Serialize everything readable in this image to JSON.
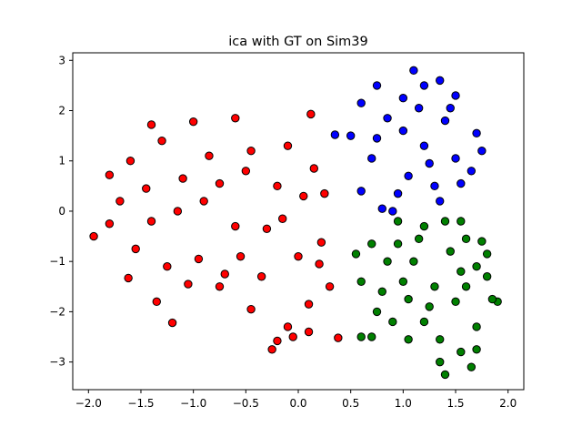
{
  "chart_data": {
    "type": "scatter",
    "title": "ica with GT on Sim39",
    "xlabel": "",
    "ylabel": "",
    "xlim": [
      -2.15,
      2.15
    ],
    "ylim": [
      -3.55,
      3.15
    ],
    "xticks": [
      -2.0,
      -1.5,
      -1.0,
      -0.5,
      0.0,
      0.5,
      1.0,
      1.5,
      2.0
    ],
    "xtick_labels": [
      "−2.0",
      "−1.5",
      "−1.0",
      "−0.5",
      "0.0",
      "0.5",
      "1.0",
      "1.5",
      "2.0"
    ],
    "yticks": [
      -3,
      -2,
      -1,
      0,
      1,
      2,
      3
    ],
    "ytick_labels": [
      "−3",
      "−2",
      "−1",
      "0",
      "1",
      "2",
      "3"
    ],
    "grid": false,
    "legend": "none",
    "marker_edge_color": "#000000",
    "series": [
      {
        "color": "#ff0000",
        "points": [
          [
            -1.95,
            -0.5
          ],
          [
            -1.8,
            0.72
          ],
          [
            -1.62,
            -1.33
          ],
          [
            -1.6,
            1.0
          ],
          [
            -1.4,
            1.72
          ],
          [
            -1.35,
            -1.8
          ],
          [
            -1.2,
            -2.22
          ],
          [
            -1.0,
            1.78
          ],
          [
            -0.75,
            -1.5
          ],
          [
            -0.6,
            1.85
          ],
          [
            -0.45,
            -1.95
          ],
          [
            -0.25,
            -2.75
          ],
          [
            -0.2,
            -2.58
          ],
          [
            -0.1,
            -2.3
          ],
          [
            -0.05,
            -2.5
          ],
          [
            0.1,
            -2.4
          ],
          [
            0.12,
            1.93
          ],
          [
            0.22,
            -0.62
          ],
          [
            0.3,
            -1.5
          ],
          [
            0.38,
            -2.52
          ],
          [
            0.25,
            0.35
          ],
          [
            0.15,
            0.85
          ],
          [
            -0.1,
            1.3
          ],
          [
            -0.95,
            -0.95
          ],
          [
            -1.4,
            -0.2
          ],
          [
            -0.75,
            0.55
          ],
          [
            -0.3,
            -0.35
          ],
          [
            -1.1,
            0.65
          ],
          [
            -0.55,
            -0.9
          ],
          [
            -1.7,
            0.2
          ],
          [
            -0.2,
            0.5
          ],
          [
            -1.25,
            -1.1
          ],
          [
            -0.45,
            1.2
          ],
          [
            -1.55,
            -0.75
          ],
          [
            0.0,
            -0.9
          ],
          [
            -0.85,
            1.1
          ],
          [
            -1.05,
            -1.45
          ],
          [
            -0.35,
            -1.3
          ],
          [
            -1.3,
            1.4
          ],
          [
            0.05,
            0.3
          ],
          [
            -0.6,
            -0.3
          ],
          [
            -0.9,
            0.2
          ],
          [
            -1.15,
            0.0
          ],
          [
            -0.15,
            -0.15
          ],
          [
            -0.7,
            -1.25
          ],
          [
            -1.45,
            0.45
          ],
          [
            0.2,
            -1.05
          ],
          [
            -0.5,
            0.8
          ],
          [
            0.1,
            -1.85
          ],
          [
            -1.8,
            -0.25
          ]
        ]
      },
      {
        "color": "#0000ff",
        "points": [
          [
            0.35,
            1.52
          ],
          [
            0.5,
            1.5
          ],
          [
            0.6,
            2.15
          ],
          [
            0.75,
            2.5
          ],
          [
            1.1,
            2.8
          ],
          [
            1.2,
            2.5
          ],
          [
            1.35,
            2.6
          ],
          [
            1.5,
            2.3
          ],
          [
            1.75,
            1.2
          ],
          [
            1.7,
            1.55
          ],
          [
            1.65,
            0.8
          ],
          [
            1.55,
            0.55
          ],
          [
            0.6,
            0.4
          ],
          [
            0.7,
            1.05
          ],
          [
            0.8,
            0.05
          ],
          [
            0.9,
            0.0
          ],
          [
            1.0,
            1.6
          ],
          [
            1.2,
            1.3
          ],
          [
            1.05,
            0.7
          ],
          [
            1.3,
            0.5
          ],
          [
            0.85,
            1.85
          ],
          [
            1.4,
            1.8
          ],
          [
            1.15,
            2.05
          ],
          [
            0.95,
            0.35
          ],
          [
            1.5,
            1.05
          ],
          [
            0.75,
            1.45
          ],
          [
            1.25,
            0.95
          ],
          [
            1.45,
            2.05
          ],
          [
            1.0,
            2.25
          ],
          [
            1.35,
            0.2
          ]
        ]
      },
      {
        "color": "#008000",
        "points": [
          [
            0.55,
            -0.85
          ],
          [
            0.6,
            -1.4
          ],
          [
            0.6,
            -2.5
          ],
          [
            0.7,
            -2.5
          ],
          [
            0.7,
            -0.65
          ],
          [
            0.75,
            -2.0
          ],
          [
            0.9,
            -2.2
          ],
          [
            1.05,
            -2.55
          ],
          [
            1.35,
            -3.0
          ],
          [
            1.4,
            -3.25
          ],
          [
            1.55,
            -2.8
          ],
          [
            1.65,
            -3.1
          ],
          [
            1.7,
            -2.75
          ],
          [
            1.9,
            -1.8
          ],
          [
            1.85,
            -1.75
          ],
          [
            1.8,
            -0.85
          ],
          [
            1.75,
            -0.6
          ],
          [
            1.7,
            -1.1
          ],
          [
            1.8,
            -1.3
          ],
          [
            1.55,
            -0.2
          ],
          [
            1.6,
            -0.55
          ],
          [
            1.4,
            -0.2
          ],
          [
            1.2,
            -0.3
          ],
          [
            0.95,
            -0.2
          ],
          [
            1.1,
            -1.0
          ],
          [
            1.3,
            -1.5
          ],
          [
            1.0,
            -1.4
          ],
          [
            1.5,
            -1.8
          ],
          [
            1.2,
            -2.2
          ],
          [
            0.85,
            -1.0
          ],
          [
            1.45,
            -0.8
          ],
          [
            1.25,
            -1.9
          ],
          [
            1.6,
            -1.5
          ],
          [
            0.95,
            -0.65
          ],
          [
            1.35,
            -2.55
          ],
          [
            1.15,
            -0.55
          ],
          [
            1.55,
            -1.2
          ],
          [
            0.8,
            -1.6
          ],
          [
            1.7,
            -2.3
          ],
          [
            1.05,
            -1.75
          ]
        ]
      }
    ]
  }
}
